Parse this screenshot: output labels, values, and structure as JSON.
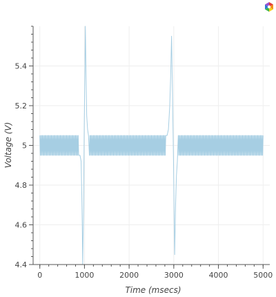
{
  "toolbar": {
    "logo_icon": "bokeh-logo-icon"
  },
  "chart_data": {
    "type": "line",
    "title": "",
    "xlabel": "Time (msecs)",
    "ylabel": "Voltage (V)",
    "xlim": [
      -150,
      5150
    ],
    "ylim": [
      4.4,
      5.6
    ],
    "grid": true,
    "legend": "none",
    "xticks": [
      0,
      1000,
      2000,
      3000,
      4000,
      5000
    ],
    "yticks": [
      4.4,
      4.6,
      4.8,
      5.0,
      5.2,
      5.4
    ],
    "ytick_labels": [
      "4.4",
      "4.6",
      "4.8",
      "5",
      "5.2",
      "5.4"
    ],
    "series": [
      {
        "color": "#a6cee3",
        "x_range": [
          0,
          5000
        ],
        "baseline_high": 5.05,
        "baseline_low": 4.95,
        "events": [
          {
            "dip_time": 960,
            "dip_min": 4.4,
            "spike_time": 1020,
            "spike_max": 5.6
          },
          {
            "spike_time": 2950,
            "spike_max": 5.55,
            "dip_time": 3020,
            "dip_min": 4.45
          }
        ]
      }
    ]
  }
}
